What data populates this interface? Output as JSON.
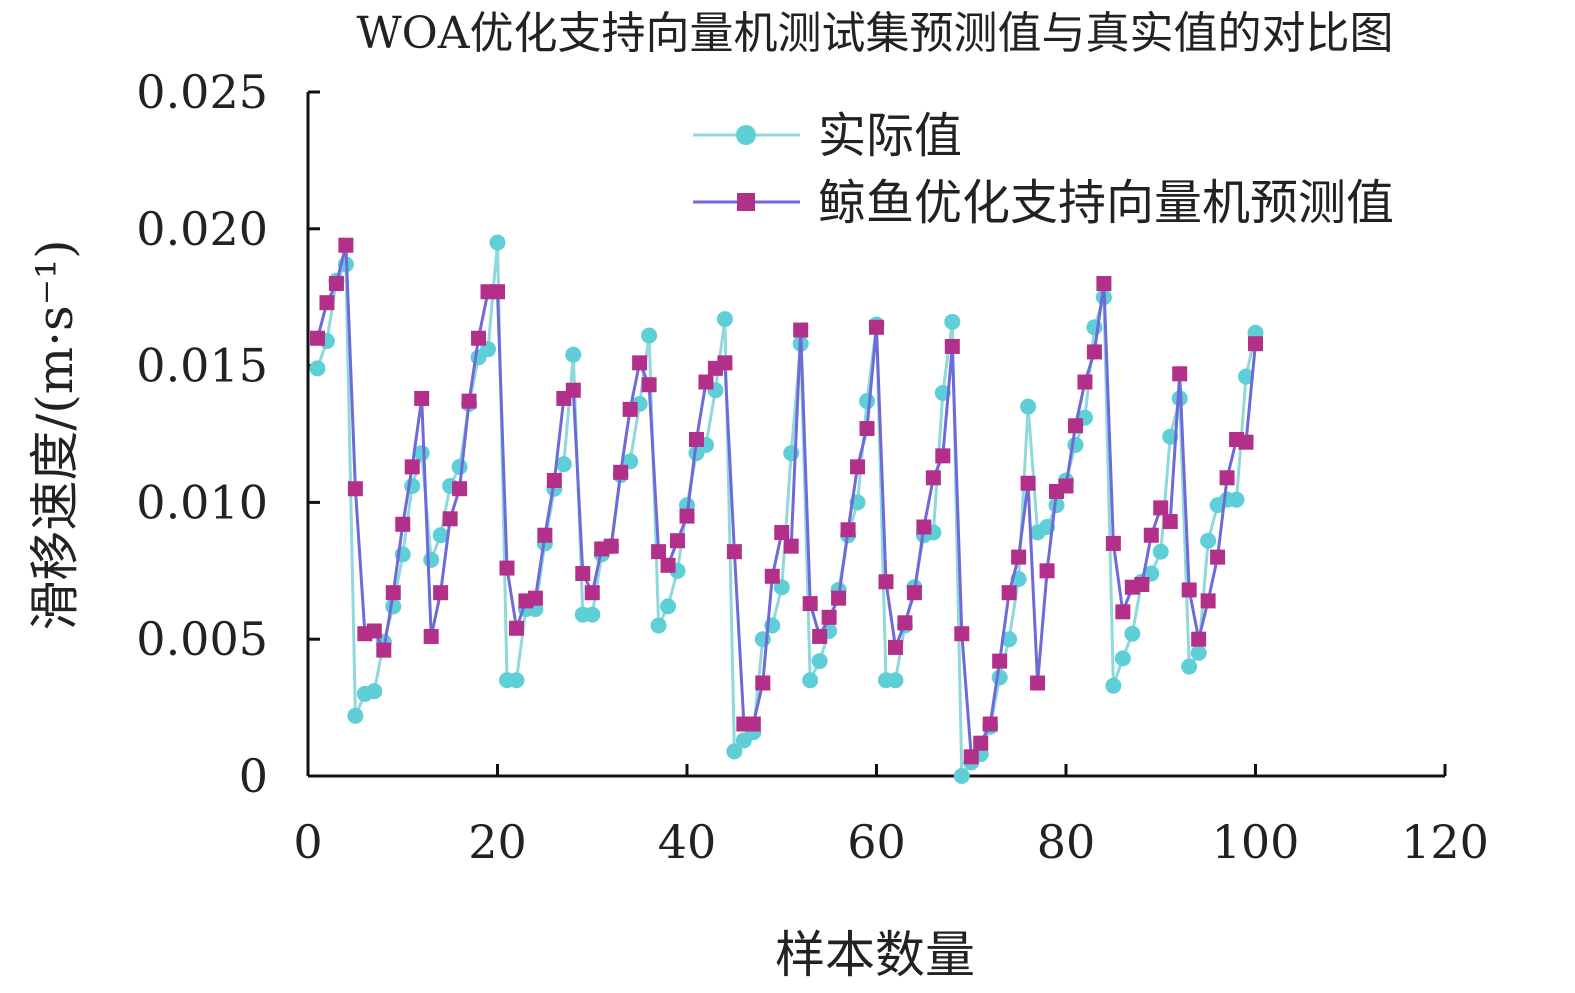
{
  "chart_data": {
    "type": "line",
    "title": "WOA优化支持向量机测试集预测值与真实值的对比图",
    "xlabel": "样本数量",
    "ylabel": "滑移速度/(m·s⁻¹)",
    "xlim": [
      0,
      120
    ],
    "ylim": [
      0,
      0.025
    ],
    "x_ticks": [
      0,
      20,
      40,
      60,
      80,
      100,
      120
    ],
    "x_tick_labels": [
      "0",
      "20",
      "40",
      "60",
      "80",
      "100",
      "120"
    ],
    "y_ticks": [
      0,
      0.005,
      0.01,
      0.015,
      0.02,
      0.025
    ],
    "y_tick_labels": [
      "0",
      "0.005",
      "0.010",
      "0.015",
      "0.020",
      "0.025"
    ],
    "grid": false,
    "legend_position": "top-right",
    "x": [
      1,
      2,
      3,
      4,
      5,
      6,
      7,
      8,
      9,
      10,
      11,
      12,
      13,
      14,
      15,
      16,
      17,
      18,
      19,
      20,
      21,
      22,
      23,
      24,
      25,
      26,
      27,
      28,
      29,
      30,
      31,
      32,
      33,
      34,
      35,
      36,
      37,
      38,
      39,
      40,
      41,
      42,
      43,
      44,
      45,
      46,
      47,
      48,
      49,
      50,
      51,
      52,
      53,
      54,
      55,
      56,
      57,
      58,
      59,
      60,
      61,
      62,
      63,
      64,
      65,
      66,
      67,
      68,
      69,
      70,
      71,
      72,
      73,
      74,
      75,
      76,
      77,
      78,
      79,
      80,
      81,
      82,
      83,
      84,
      85,
      86,
      87,
      88,
      89,
      90,
      91,
      92,
      93,
      94,
      95,
      96,
      97,
      98,
      99,
      100
    ],
    "series": [
      {
        "name": "实际值",
        "color": "#5ecfd6",
        "line_color": "#8fd8dc",
        "marker": "circle",
        "values": [
          0.0149,
          0.0159,
          0.0181,
          0.0187,
          0.0022,
          0.003,
          0.0031,
          0.0049,
          0.0062,
          0.0081,
          0.0106,
          0.0118,
          0.0079,
          0.0088,
          0.0106,
          0.0113,
          0.0136,
          0.0153,
          0.0156,
          0.0195,
          0.0035,
          0.0035,
          0.0061,
          0.0061,
          0.0085,
          0.0105,
          0.0114,
          0.0154,
          0.0059,
          0.0059,
          0.0081,
          0.0084,
          0.011,
          0.0115,
          0.0136,
          0.0161,
          0.0055,
          0.0062,
          0.0075,
          0.0099,
          0.0118,
          0.0121,
          0.0141,
          0.0167,
          0.0009,
          0.0013,
          0.0016,
          0.005,
          0.0055,
          0.0069,
          0.0118,
          0.0158,
          0.0035,
          0.0042,
          0.0053,
          0.0068,
          0.0088,
          0.01,
          0.0137,
          0.0165,
          0.0035,
          0.0035,
          0.0055,
          0.0069,
          0.0088,
          0.0089,
          0.014,
          0.0166,
          0.0,
          0.0005,
          0.0008,
          0.0018,
          0.0036,
          0.005,
          0.0072,
          0.0135,
          0.0089,
          0.0091,
          0.0099,
          0.0108,
          0.0121,
          0.0131,
          0.0164,
          0.0175,
          0.0033,
          0.0043,
          0.0052,
          0.0071,
          0.0074,
          0.0082,
          0.0124,
          0.0138,
          0.004,
          0.0045,
          0.0086,
          0.0099,
          0.0101,
          0.0101,
          0.0146,
          0.0162
        ]
      },
      {
        "name": "鲸鱼优化支持向量机预测值",
        "color": "#b2308a",
        "line_color": "#6e6ad8",
        "marker": "square",
        "values": [
          0.016,
          0.0173,
          0.018,
          0.0194,
          0.0105,
          0.0052,
          0.0053,
          0.0046,
          0.0067,
          0.0092,
          0.0113,
          0.0138,
          0.0051,
          0.0067,
          0.0094,
          0.0105,
          0.0137,
          0.016,
          0.0177,
          0.0177,
          0.0076,
          0.0054,
          0.0064,
          0.0065,
          0.0088,
          0.0108,
          0.0138,
          0.0141,
          0.0074,
          0.0067,
          0.0083,
          0.0084,
          0.0111,
          0.0134,
          0.0151,
          0.0143,
          0.0082,
          0.0077,
          0.0086,
          0.0095,
          0.0123,
          0.0144,
          0.0149,
          0.0151,
          0.0082,
          0.0019,
          0.0019,
          0.0034,
          0.0073,
          0.0089,
          0.0084,
          0.0163,
          0.0063,
          0.0051,
          0.0058,
          0.0065,
          0.009,
          0.0113,
          0.0127,
          0.0164,
          0.0071,
          0.0047,
          0.0056,
          0.0067,
          0.0091,
          0.0109,
          0.0117,
          0.0157,
          0.0052,
          0.0007,
          0.0012,
          0.0019,
          0.0042,
          0.0067,
          0.008,
          0.0107,
          0.0034,
          0.0075,
          0.0104,
          0.0106,
          0.0128,
          0.0144,
          0.0155,
          0.018,
          0.0085,
          0.006,
          0.0069,
          0.007,
          0.0088,
          0.0098,
          0.0093,
          0.0147,
          0.0068,
          0.005,
          0.0064,
          0.008,
          0.0109,
          0.0123,
          0.0122,
          0.0158
        ]
      }
    ]
  }
}
